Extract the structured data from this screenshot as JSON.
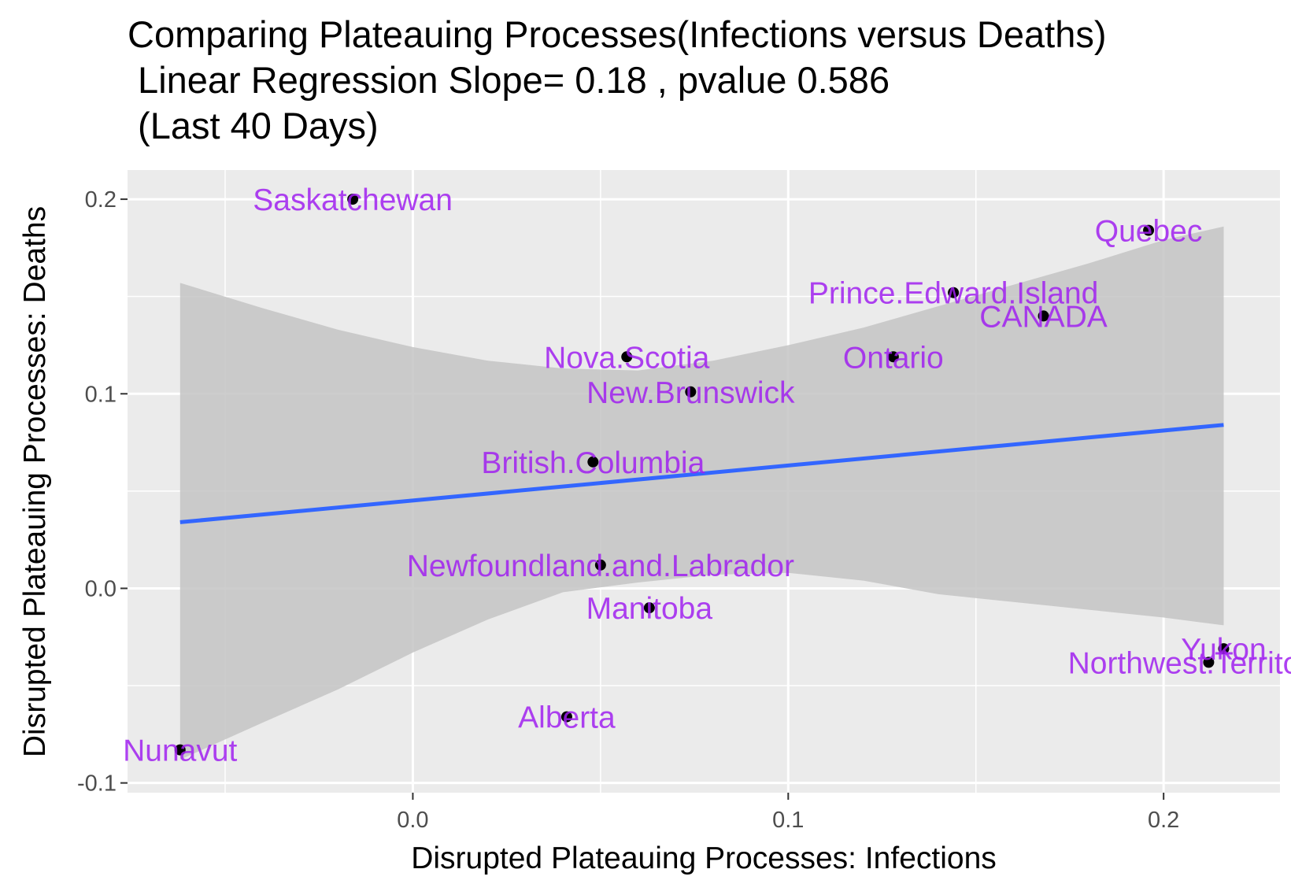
{
  "title": {
    "line1": "Comparing Plateauing Processes(Infections versus Deaths)",
    "line2": " Linear Regression Slope= 0.18 , pvalue 0.586",
    "line3": " (Last 40 Days)"
  },
  "colors": {
    "panel": "#ebebeb",
    "grid": "#ffffff",
    "ribbon": "#c4c4c4",
    "line": "#3366ff",
    "point": "#000000",
    "label": "#a020f0"
  },
  "chart_data": {
    "type": "scatter",
    "title": "Comparing Plateauing Processes(Infections versus Deaths) Linear Regression Slope= 0.18 , pvalue 0.586 (Last 40 Days)",
    "xlabel": "Disrupted Plateauing Processes: Infections",
    "ylabel": "Disrupted Plateauing Processes: Deaths",
    "xlim": [
      -0.076,
      0.231
    ],
    "ylim": [
      -0.105,
      0.215
    ],
    "x_ticks": [
      {
        "value": 0.0,
        "label": "0.0"
      },
      {
        "value": 0.1,
        "label": "0.1"
      },
      {
        "value": 0.2,
        "label": "0.2"
      }
    ],
    "y_ticks": [
      {
        "value": 0.2,
        "label": "0.2"
      },
      {
        "value": 0.1,
        "label": "0.1"
      },
      {
        "value": 0.0,
        "label": "0.0"
      },
      {
        "value": -0.1,
        "label": "-0.1"
      }
    ],
    "grid": true,
    "points": [
      {
        "label": "Saskatchewan",
        "x": -0.016,
        "y": 0.2
      },
      {
        "label": "Quebec",
        "x": 0.196,
        "y": 0.184
      },
      {
        "label": "Prince.Edward.Island",
        "x": 0.144,
        "y": 0.152
      },
      {
        "label": "CANADA",
        "x": 0.168,
        "y": 0.14
      },
      {
        "label": "Nova.Scotia",
        "x": 0.057,
        "y": 0.119
      },
      {
        "label": "Ontario",
        "x": 0.128,
        "y": 0.119
      },
      {
        "label": "New.Brunswick",
        "x": 0.074,
        "y": 0.101
      },
      {
        "label": "British.Columbia",
        "x": 0.048,
        "y": 0.065
      },
      {
        "label": "Newfoundland.and.Labrador",
        "x": 0.05,
        "y": 0.012
      },
      {
        "label": "Manitoba",
        "x": 0.063,
        "y": -0.01
      },
      {
        "label": "Yukon",
        "x": 0.216,
        "y": -0.031
      },
      {
        "label": "Northwest.Territories",
        "x": 0.212,
        "y": -0.038
      },
      {
        "label": "Alberta",
        "x": 0.041,
        "y": -0.066
      },
      {
        "label": "Nunavut",
        "x": -0.062,
        "y": -0.083
      }
    ],
    "regression": {
      "slope": 0.18,
      "pvalue": 0.586,
      "x": [
        -0.062,
        0.216
      ],
      "y": [
        0.034,
        0.084
      ]
    },
    "confidence_band": {
      "x": [
        -0.062,
        -0.04,
        -0.02,
        0.0,
        0.02,
        0.04,
        0.06,
        0.08,
        0.1,
        0.12,
        0.14,
        0.16,
        0.18,
        0.2,
        0.216
      ],
      "upper": [
        0.157,
        0.144,
        0.133,
        0.124,
        0.117,
        0.113,
        0.112,
        0.117,
        0.125,
        0.134,
        0.145,
        0.156,
        0.167,
        0.179,
        0.186
      ],
      "lower": [
        -0.088,
        -0.069,
        -0.052,
        -0.033,
        -0.016,
        -0.002,
        0.003,
        0.007,
        0.008,
        0.004,
        -0.003,
        -0.007,
        -0.011,
        -0.015,
        -0.019
      ]
    }
  }
}
